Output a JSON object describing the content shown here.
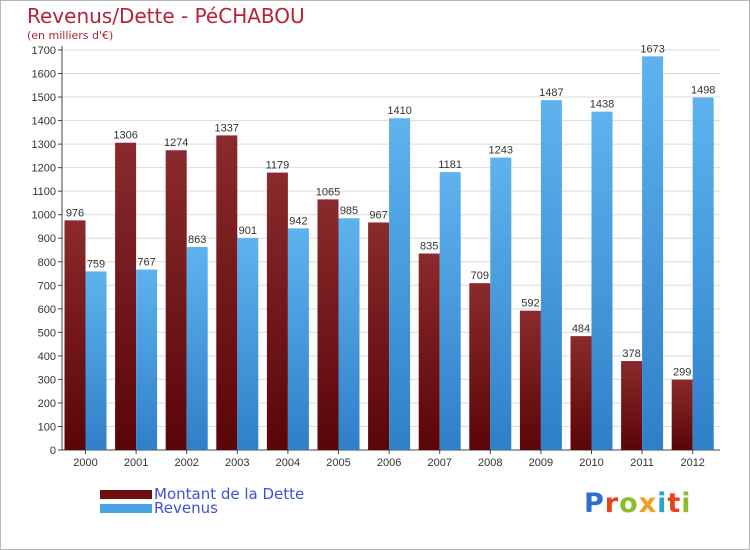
{
  "chart_data": {
    "type": "bar",
    "title": "Revenus/Dette - PéCHABOU",
    "subtitle": "(en milliers d'€)",
    "categories": [
      "2000",
      "2001",
      "2002",
      "2003",
      "2004",
      "2005",
      "2006",
      "2007",
      "2008",
      "2009",
      "2010",
      "2011",
      "2012"
    ],
    "series": [
      {
        "name": "Montant de la Dette",
        "color": "#6b0f12",
        "values": [
          976,
          1306,
          1274,
          1337,
          1179,
          1065,
          967,
          835,
          709,
          592,
          484,
          378,
          299
        ]
      },
      {
        "name": "Revenus",
        "color": "#4aa3e6",
        "values": [
          759,
          767,
          863,
          901,
          942,
          985,
          1410,
          1181,
          1243,
          1487,
          1438,
          1673,
          1498
        ]
      }
    ],
    "ylim": [
      0,
      1700
    ],
    "ytick_step": 100,
    "grid": true,
    "legend_position": "bottom-left"
  },
  "logo": {
    "text": "Proxiti",
    "colors": [
      "#2d6fd1",
      "#e8401c",
      "#8bbf2a",
      "#f0a01a",
      "#2aa1d8",
      "#e8401c",
      "#8bbf2a"
    ]
  }
}
